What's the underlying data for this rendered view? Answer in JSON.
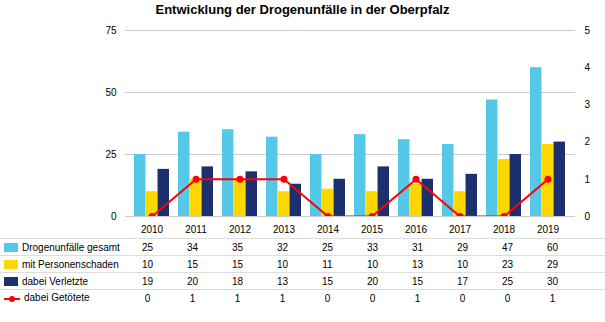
{
  "chart_data": {
    "type": "bar",
    "title": "Entwicklung der Drogenunfälle in der Oberpfalz",
    "categories": [
      "2010",
      "2011",
      "2012",
      "2013",
      "2014",
      "2015",
      "2016",
      "2017",
      "2018",
      "2019"
    ],
    "series": [
      {
        "name": "Drogenunfälle gesamt",
        "color": "#55C8E8",
        "values": [
          25,
          34,
          35,
          32,
          25,
          33,
          31,
          29,
          47,
          60
        ]
      },
      {
        "name": "mit Personenschaden",
        "color": "#FFD700",
        "values": [
          10,
          15,
          15,
          10,
          11,
          10,
          13,
          10,
          23,
          29
        ]
      },
      {
        "name": "dabei Verletzte",
        "color": "#1C2F6E",
        "values": [
          19,
          20,
          18,
          13,
          15,
          20,
          15,
          17,
          25,
          30
        ]
      },
      {
        "name": "dabei Getötete",
        "color": "#FF0000",
        "values": [
          0,
          1,
          1,
          1,
          0,
          0,
          1,
          0,
          0,
          1
        ],
        "type": "line",
        "marker": "circle",
        "axis": "y2"
      }
    ],
    "ylim": [
      0,
      75
    ],
    "yticks": [
      0,
      25,
      50,
      75
    ],
    "y2lim": [
      0,
      5
    ],
    "y2ticks": [
      0,
      1,
      2,
      3,
      4,
      5
    ],
    "grid": true,
    "legend": "bottom",
    "data_labels": true
  }
}
